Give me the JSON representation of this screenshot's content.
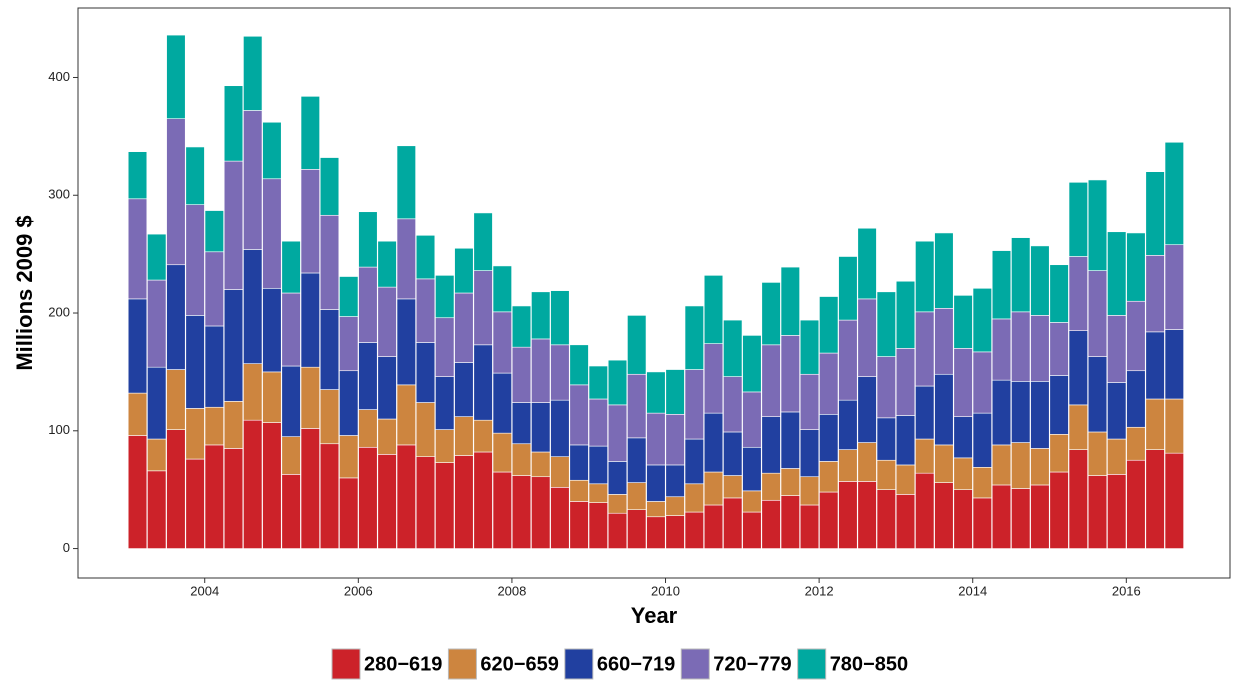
{
  "chart_data": {
    "type": "stacked-bar",
    "x_label": "Year",
    "y_label": "Millions 2009 $",
    "x": [
      2003.125,
      2003.375,
      2003.625,
      2003.875,
      2004.125,
      2004.375,
      2004.625,
      2004.875,
      2005.125,
      2005.375,
      2005.625,
      2005.875,
      2006.125,
      2006.375,
      2006.625,
      2006.875,
      2007.125,
      2007.375,
      2007.625,
      2007.875,
      2008.125,
      2008.375,
      2008.625,
      2008.875,
      2009.125,
      2009.375,
      2009.625,
      2009.875,
      2010.125,
      2010.375,
      2010.625,
      2010.875,
      2011.125,
      2011.375,
      2011.625,
      2011.875,
      2012.125,
      2012.375,
      2012.625,
      2012.875,
      2013.125,
      2013.375,
      2013.625,
      2013.875,
      2014.125,
      2014.375,
      2014.625,
      2014.875,
      2015.125,
      2015.375,
      2015.625,
      2015.875,
      2016.125,
      2016.375,
      2016.625
    ],
    "series": [
      {
        "name": "280−619",
        "color": "#cc2229",
        "values": [
          96,
          66,
          101,
          76,
          88,
          85,
          109,
          107,
          63,
          102,
          89,
          60,
          86,
          80,
          88,
          78,
          73,
          79,
          82,
          65,
          62,
          61,
          52,
          40,
          39,
          30,
          33,
          27,
          28,
          31,
          37,
          43,
          31,
          41,
          45,
          37,
          48,
          57,
          57,
          50,
          46,
          64,
          56,
          50,
          43,
          54,
          51,
          54,
          65,
          84,
          62,
          63,
          75,
          84,
          81
        ]
      },
      {
        "name": "620−659",
        "color": "#cd853f",
        "values": [
          36,
          27,
          51,
          43,
          32,
          40,
          48,
          43,
          32,
          52,
          46,
          36,
          32,
          30,
          51,
          46,
          28,
          33,
          27,
          33,
          27,
          21,
          26,
          18,
          16,
          16,
          23,
          13,
          16,
          24,
          28,
          19,
          18,
          23,
          23,
          24,
          26,
          27,
          33,
          25,
          25,
          29,
          32,
          27,
          26,
          34,
          39,
          31,
          32,
          38,
          37,
          30,
          28,
          43,
          46
        ]
      },
      {
        "name": "660−719",
        "color": "#2140a0",
        "values": [
          80,
          61,
          89,
          79,
          69,
          95,
          97,
          71,
          60,
          80,
          68,
          55,
          57,
          53,
          73,
          51,
          45,
          46,
          64,
          51,
          35,
          42,
          48,
          30,
          32,
          28,
          38,
          31,
          27,
          38,
          50,
          37,
          37,
          48,
          48,
          40,
          40,
          42,
          56,
          36,
          42,
          45,
          60,
          35,
          46,
          55,
          52,
          57,
          50,
          63,
          64,
          48,
          48,
          57,
          59
        ]
      },
      {
        "name": "720−779",
        "color": "#7b6bb5",
        "values": [
          85,
          74,
          124,
          94,
          63,
          109,
          118,
          93,
          62,
          88,
          80,
          46,
          64,
          59,
          68,
          54,
          50,
          59,
          63,
          52,
          47,
          54,
          47,
          51,
          40,
          48,
          54,
          44,
          43,
          59,
          59,
          47,
          47,
          61,
          65,
          47,
          52,
          68,
          66,
          52,
          57,
          63,
          56,
          58,
          52,
          52,
          59,
          56,
          45,
          63,
          73,
          57,
          59,
          65,
          72
        ]
      },
      {
        "name": "780−850",
        "color": "#00a9a0",
        "values": [
          40,
          39,
          71,
          49,
          35,
          64,
          63,
          48,
          44,
          62,
          49,
          34,
          47,
          39,
          62,
          37,
          36,
          38,
          49,
          39,
          35,
          40,
          46,
          34,
          28,
          38,
          50,
          35,
          38,
          54,
          58,
          48,
          48,
          53,
          58,
          46,
          48,
          54,
          60,
          55,
          57,
          60,
          64,
          45,
          54,
          58,
          63,
          59,
          49,
          63,
          77,
          71,
          58,
          71,
          87
        ]
      }
    ],
    "xlim": [
      2002.35,
      2017.35
    ],
    "xticks": [
      2004,
      2006,
      2008,
      2010,
      2012,
      2014,
      2016
    ],
    "ylim": [
      -25,
      459
    ],
    "yticks": [
      0,
      100,
      200,
      300,
      400
    ],
    "grid": false,
    "legend": "bottom"
  }
}
